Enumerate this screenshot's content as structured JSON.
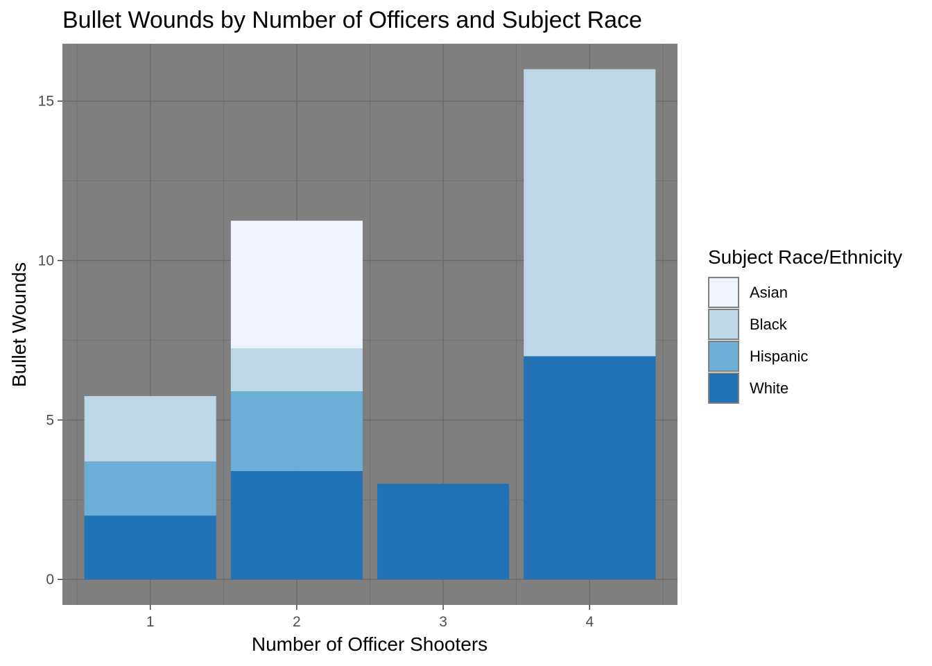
{
  "chart_data": {
    "type": "bar",
    "stacked": true,
    "title": "Bullet Wounds by Number of Officers and Subject Race",
    "xlabel": "Number of Officer Shooters",
    "ylabel": "Bullet Wounds",
    "categories": [
      "1",
      "2",
      "3",
      "4"
    ],
    "ylim": [
      -0.8,
      16.8
    ],
    "yticks": [
      0,
      5,
      10,
      15
    ],
    "series": [
      {
        "name": "White",
        "color": "#2171b5",
        "values": [
          2.0,
          3.4,
          3.0,
          7.0
        ]
      },
      {
        "name": "Hispanic",
        "color": "#6baed6",
        "values": [
          1.7,
          2.5,
          0,
          0
        ]
      },
      {
        "name": "Black",
        "color": "#bdd7e7",
        "values": [
          2.05,
          1.35,
          0,
          9.0
        ]
      },
      {
        "name": "Asian",
        "color": "#eff3ff",
        "values": [
          0,
          4.0,
          0,
          0
        ]
      }
    ],
    "panel_background": "#7f7f7f",
    "grid": true,
    "legend": {
      "title": "Subject Race/Ethnicity",
      "position": "right",
      "items": [
        "Asian",
        "Black",
        "Hispanic",
        "White"
      ]
    }
  }
}
